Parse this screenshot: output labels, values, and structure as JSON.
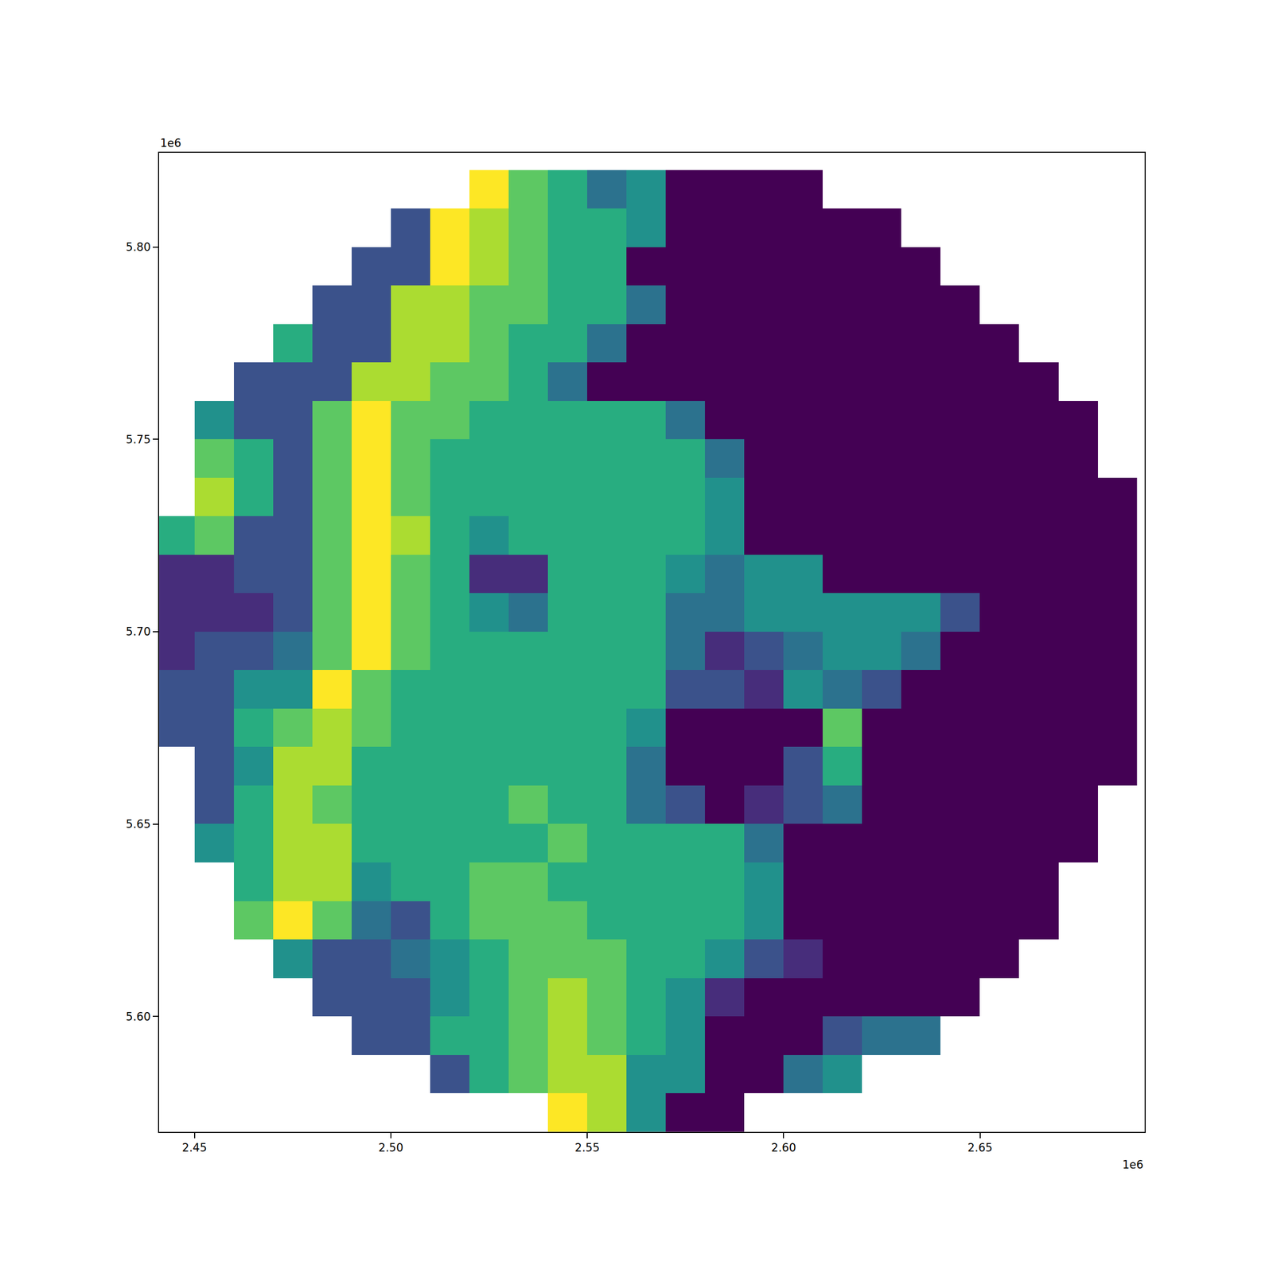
{
  "chart_data": {
    "type": "heatmap",
    "color": "viridis",
    "grid": false,
    "x": [
      2445000,
      2455000,
      2465000,
      2475000,
      2485000,
      2495000,
      2505000,
      2515000,
      2525000,
      2535000,
      2545000,
      2555000,
      2565000,
      2575000,
      2585000,
      2595000,
      2605000,
      2615000,
      2625000,
      2635000,
      2645000,
      2655000,
      2665000,
      2675000,
      2685000
    ],
    "y": [
      5815000,
      5805000,
      5795000,
      5785000,
      5775000,
      5765000,
      5755000,
      5745000,
      5735000,
      5725000,
      5715000,
      5705000,
      5695000,
      5685000,
      5675000,
      5665000,
      5655000,
      5645000,
      5635000,
      5625000,
      5615000,
      5605000,
      5595000,
      5585000,
      5575000
    ],
    "z": [
      [
        null,
        null,
        null,
        null,
        null,
        null,
        null,
        null,
        8,
        6,
        5,
        3,
        4,
        0,
        0,
        0,
        0,
        null,
        null,
        null,
        null,
        null,
        null,
        null,
        null
      ],
      [
        null,
        null,
        null,
        null,
        null,
        null,
        2,
        8,
        7,
        6,
        5,
        5,
        4,
        0,
        0,
        0,
        0,
        0,
        0,
        null,
        null,
        null,
        null,
        null,
        null
      ],
      [
        null,
        null,
        null,
        null,
        null,
        2,
        2,
        8,
        7,
        6,
        5,
        5,
        0,
        0,
        0,
        0,
        0,
        0,
        0,
        0,
        null,
        null,
        null,
        null,
        null
      ],
      [
        null,
        null,
        null,
        null,
        2,
        2,
        7,
        7,
        6,
        6,
        5,
        5,
        3,
        0,
        0,
        0,
        0,
        0,
        0,
        0,
        0,
        null,
        null,
        null,
        null
      ],
      [
        null,
        null,
        null,
        5,
        2,
        2,
        7,
        7,
        6,
        5,
        5,
        3,
        0,
        0,
        0,
        0,
        0,
        0,
        0,
        0,
        0,
        0,
        null,
        null,
        null
      ],
      [
        null,
        null,
        2,
        2,
        2,
        7,
        7,
        6,
        6,
        5,
        3,
        0,
        0,
        0,
        0,
        0,
        0,
        0,
        0,
        0,
        0,
        0,
        0,
        null,
        null
      ],
      [
        null,
        4,
        2,
        2,
        6,
        8,
        6,
        6,
        5,
        5,
        5,
        5,
        5,
        3,
        0,
        0,
        0,
        0,
        0,
        0,
        0,
        0,
        0,
        0,
        null
      ],
      [
        null,
        6,
        5,
        2,
        6,
        8,
        6,
        5,
        5,
        5,
        5,
        5,
        5,
        5,
        3,
        0,
        0,
        0,
        0,
        0,
        0,
        0,
        0,
        0,
        null
      ],
      [
        null,
        7,
        5,
        2,
        6,
        8,
        6,
        5,
        5,
        5,
        5,
        5,
        5,
        5,
        4,
        0,
        0,
        0,
        0,
        0,
        0,
        0,
        0,
        0,
        0
      ],
      [
        5,
        6,
        2,
        2,
        6,
        8,
        7,
        5,
        4,
        5,
        5,
        5,
        5,
        5,
        4,
        0,
        0,
        0,
        0,
        0,
        0,
        0,
        0,
        0,
        0
      ],
      [
        1,
        1,
        2,
        2,
        6,
        8,
        6,
        5,
        1,
        1,
        5,
        5,
        5,
        4,
        3,
        4,
        4,
        0,
        0,
        0,
        0,
        0,
        0,
        0,
        0
      ],
      [
        1,
        1,
        1,
        2,
        6,
        8,
        6,
        5,
        4,
        3,
        5,
        5,
        5,
        3,
        3,
        4,
        4,
        4,
        4,
        4,
        2,
        0,
        0,
        0,
        0
      ],
      [
        1,
        2,
        2,
        3,
        6,
        8,
        6,
        5,
        5,
        5,
        5,
        5,
        5,
        3,
        1,
        2,
        3,
        4,
        4,
        3,
        0,
        0,
        0,
        0,
        0
      ],
      [
        2,
        2,
        4,
        4,
        8,
        6,
        5,
        5,
        5,
        5,
        5,
        5,
        5,
        2,
        2,
        1,
        4,
        3,
        2,
        0,
        0,
        0,
        0,
        0,
        0
      ],
      [
        2,
        2,
        5,
        6,
        7,
        6,
        5,
        5,
        5,
        5,
        5,
        5,
        4,
        0,
        0,
        0,
        0,
        6,
        0,
        0,
        0,
        0,
        0,
        0,
        0
      ],
      [
        null,
        2,
        4,
        7,
        7,
        5,
        5,
        5,
        5,
        5,
        5,
        5,
        3,
        0,
        0,
        0,
        2,
        5,
        0,
        0,
        0,
        0,
        0,
        0,
        0
      ],
      [
        null,
        2,
        5,
        7,
        6,
        5,
        5,
        5,
        5,
        6,
        5,
        5,
        3,
        2,
        0,
        1,
        2,
        3,
        0,
        0,
        0,
        0,
        0,
        0,
        null
      ],
      [
        null,
        4,
        5,
        7,
        7,
        5,
        5,
        5,
        5,
        5,
        6,
        5,
        5,
        5,
        5,
        3,
        0,
        0,
        0,
        0,
        0,
        0,
        0,
        0,
        null
      ],
      [
        null,
        null,
        5,
        7,
        7,
        4,
        5,
        5,
        6,
        6,
        5,
        5,
        5,
        5,
        5,
        4,
        0,
        0,
        0,
        0,
        0,
        0,
        0,
        null,
        null
      ],
      [
        null,
        null,
        6,
        8,
        6,
        3,
        2,
        5,
        6,
        6,
        6,
        5,
        5,
        5,
        5,
        4,
        0,
        0,
        0,
        0,
        0,
        0,
        0,
        null,
        null
      ],
      [
        null,
        null,
        null,
        4,
        2,
        2,
        3,
        4,
        5,
        6,
        6,
        6,
        5,
        5,
        4,
        2,
        1,
        0,
        0,
        0,
        0,
        0,
        null,
        null,
        null
      ],
      [
        null,
        null,
        null,
        null,
        2,
        2,
        2,
        4,
        5,
        6,
        7,
        6,
        5,
        4,
        1,
        0,
        0,
        0,
        0,
        0,
        0,
        null,
        null,
        null,
        null
      ],
      [
        null,
        null,
        null,
        null,
        null,
        2,
        2,
        5,
        5,
        6,
        7,
        6,
        5,
        4,
        0,
        0,
        0,
        2,
        3,
        3,
        null,
        null,
        null,
        null,
        null
      ],
      [
        null,
        null,
        null,
        null,
        null,
        null,
        null,
        2,
        5,
        6,
        7,
        7,
        4,
        4,
        0,
        0,
        3,
        4,
        null,
        null,
        null,
        null,
        null,
        null,
        null
      ],
      [
        null,
        null,
        null,
        null,
        null,
        null,
        null,
        null,
        null,
        null,
        8,
        7,
        4,
        0,
        0,
        null,
        null,
        null,
        null,
        null,
        null,
        null,
        null,
        null,
        null
      ]
    ],
    "xlim": [
      2441000,
      2691900
    ],
    "ylim": [
      5570000,
      5824500
    ],
    "xticks": [
      {
        "value": 2450000,
        "label": "2.45"
      },
      {
        "value": 2500000,
        "label": "2.50"
      },
      {
        "value": 2550000,
        "label": "2.55"
      },
      {
        "value": 2600000,
        "label": "2.60"
      },
      {
        "value": 2650000,
        "label": "2.65"
      }
    ],
    "yticks": [
      {
        "value": 5600000,
        "label": "5.60"
      },
      {
        "value": 5650000,
        "label": "5.65"
      },
      {
        "value": 5700000,
        "label": "5.70"
      },
      {
        "value": 5750000,
        "label": "5.75"
      },
      {
        "value": 5800000,
        "label": "5.80"
      }
    ],
    "annotations": [
      {
        "text": "1e6",
        "axis": "y"
      },
      {
        "text": "1e6",
        "axis": "x"
      }
    ]
  }
}
